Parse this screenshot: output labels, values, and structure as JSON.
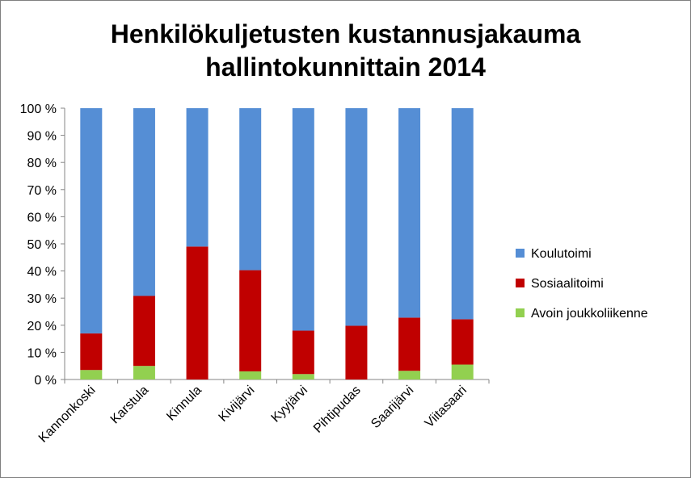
{
  "chart_data": {
    "type": "bar",
    "stacked": true,
    "percent_stacked": true,
    "title_lines": [
      "Henkilökuljetusten kustannusjakauma",
      "hallintokunnittain 2014"
    ],
    "xlabel": "",
    "ylabel": "",
    "ylim": [
      0,
      100
    ],
    "y_ticks": [
      0,
      10,
      20,
      30,
      40,
      50,
      60,
      70,
      80,
      90,
      100
    ],
    "y_tick_labels": [
      "0 %",
      "10 %",
      "20 %",
      "30 %",
      "40 %",
      "50 %",
      "60 %",
      "70 %",
      "80 %",
      "90 %",
      "100 %"
    ],
    "grid": false,
    "legend_position": "right",
    "categories": [
      "Kannonkoski",
      "Karstula",
      "Kinnula",
      "Kivijärvi",
      "Kyyjärvi",
      "Pihtipudas",
      "Saarijärvi",
      "Viitasaari"
    ],
    "series": [
      {
        "name": "Avoin joukkoliikenne",
        "color": "#92d050",
        "values": [
          3.5,
          5,
          0,
          3,
          2,
          0,
          3.2,
          5.5
        ]
      },
      {
        "name": "Sosiaalitoimi",
        "color": "#c00000",
        "values": [
          13.5,
          25.8,
          49,
          37.3,
          16,
          19.8,
          19.6,
          16.7
        ]
      },
      {
        "name": "Koulutoimi",
        "color": "#558ed5",
        "values": [
          83,
          69.2,
          51,
          59.7,
          82,
          80.2,
          77.2,
          77.8
        ]
      }
    ],
    "legend_order": [
      "Koulutoimi",
      "Sosiaalitoimi",
      "Avoin joukkoliikenne"
    ]
  }
}
